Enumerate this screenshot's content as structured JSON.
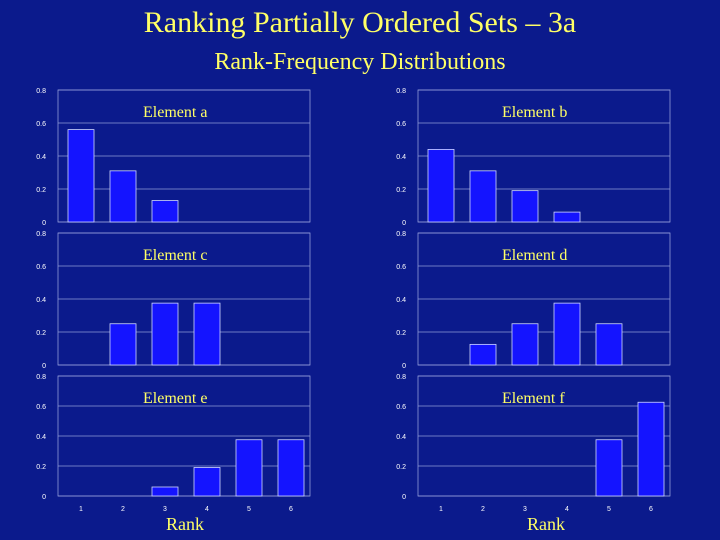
{
  "title": "Ranking Partially Ordered Sets – 3a",
  "subtitle": "Rank-Frequency Distributions",
  "colors": {
    "background": "#0b1a8c",
    "title_text": "#ffff66",
    "bar_fill": "#1414ff",
    "bar_stroke": "#d0d8ff",
    "grid": "#8f9ad8",
    "tick_text": "#ffffff"
  },
  "chart_data": [
    {
      "type": "bar",
      "label": "Element a",
      "categories": [
        "1",
        "2",
        "3",
        "4",
        "5",
        "6"
      ],
      "values": [
        0.56,
        0.31,
        0.13,
        0,
        0,
        0
      ],
      "ylim": [
        0,
        0.8
      ],
      "yticks": [
        "0",
        "0.2",
        "0.4",
        "0.6",
        "0.8"
      ],
      "xlabel": "",
      "grid": true
    },
    {
      "type": "bar",
      "label": "Element b",
      "categories": [
        "1",
        "2",
        "3",
        "4",
        "5",
        "6"
      ],
      "values": [
        0.44,
        0.31,
        0.19,
        0.06,
        0,
        0
      ],
      "ylim": [
        0,
        0.8
      ],
      "yticks": [
        "0",
        "0.2",
        "0.4",
        "0.6",
        "0.8"
      ],
      "xlabel": "",
      "grid": true
    },
    {
      "type": "bar",
      "label": "Element c",
      "categories": [
        "1",
        "2",
        "3",
        "4",
        "5",
        "6"
      ],
      "values": [
        0,
        0.25,
        0.375,
        0.375,
        0,
        0
      ],
      "ylim": [
        0,
        0.8
      ],
      "yticks": [
        "0",
        "0.2",
        "0.4",
        "0.6",
        "0.8"
      ],
      "xlabel": "",
      "grid": true
    },
    {
      "type": "bar",
      "label": "Element d",
      "categories": [
        "1",
        "2",
        "3",
        "4",
        "5",
        "6"
      ],
      "values": [
        0,
        0.125,
        0.25,
        0.375,
        0.25,
        0
      ],
      "ylim": [
        0,
        0.8
      ],
      "yticks": [
        "0",
        "0.2",
        "0.4",
        "0.6",
        "0.8"
      ],
      "xlabel": "",
      "grid": true
    },
    {
      "type": "bar",
      "label": "Element e",
      "categories": [
        "1",
        "2",
        "3",
        "4",
        "5",
        "6"
      ],
      "values": [
        0,
        0,
        0.06,
        0.19,
        0.375,
        0.375
      ],
      "ylim": [
        0,
        0.8
      ],
      "yticks": [
        "0",
        "0.2",
        "0.4",
        "0.6",
        "0.8"
      ],
      "xticks": [
        "1",
        "2",
        "3",
        "4",
        "5",
        "6"
      ],
      "xlabel": "Rank",
      "grid": true
    },
    {
      "type": "bar",
      "label": "Element f",
      "categories": [
        "1",
        "2",
        "3",
        "4",
        "5",
        "6"
      ],
      "values": [
        0,
        0,
        0,
        0,
        0.375,
        0.625
      ],
      "ylim": [
        0,
        0.8
      ],
      "yticks": [
        "0",
        "0.2",
        "0.4",
        "0.6",
        "0.8"
      ],
      "xticks": [
        "1",
        "2",
        "3",
        "4",
        "5",
        "6"
      ],
      "xlabel": "Rank",
      "grid": true
    }
  ]
}
